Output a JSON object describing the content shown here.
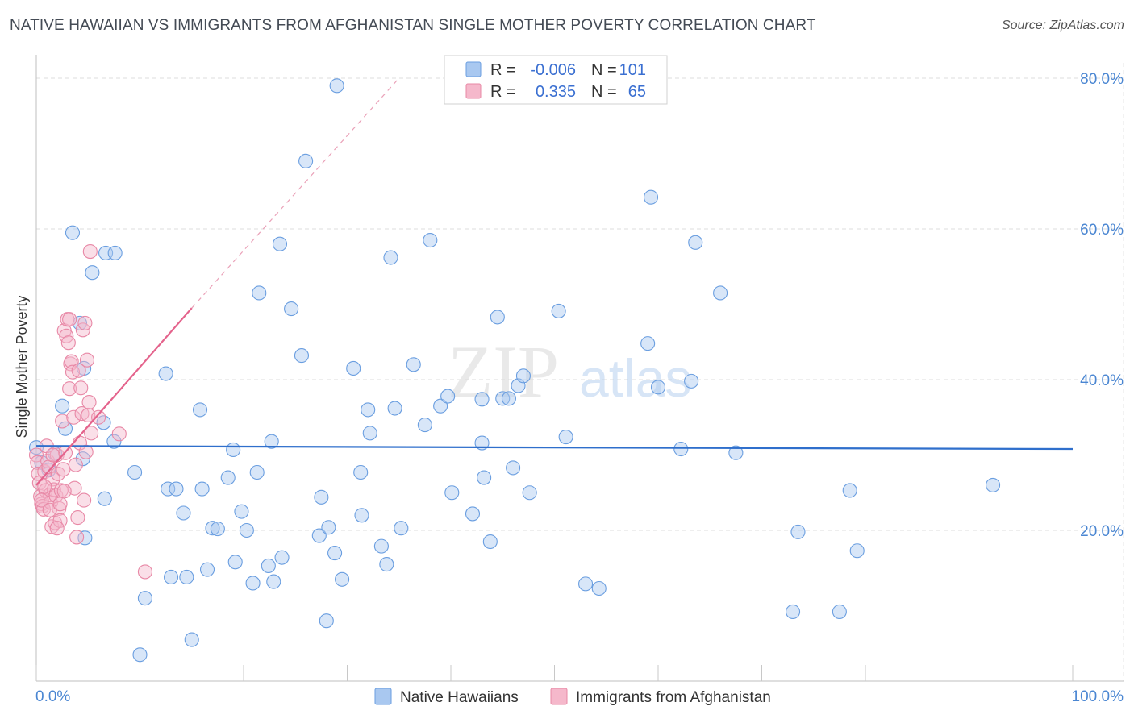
{
  "title": "NATIVE HAWAIIAN VS IMMIGRANTS FROM AFGHANISTAN SINGLE MOTHER POVERTY CORRELATION CHART",
  "source": "Source: ZipAtlas.com",
  "watermark": {
    "zip": "ZIP",
    "atlas": "atlas"
  },
  "legend": {
    "rows": [
      {
        "r_label": "R =",
        "r_value": "-0.006",
        "n_label": "N =",
        "n_value": "101",
        "color": "#a9c8f0",
        "stroke": "#6a9ee0"
      },
      {
        "r_label": "R =",
        "r_value": "0.335",
        "n_label": "N =",
        "n_value": "65",
        "color": "#f5b8cb",
        "stroke": "#e888a6"
      }
    ]
  },
  "bottom_legend": [
    {
      "label": "Native Hawaiians",
      "color": "#a9c8f0",
      "stroke": "#6a9ee0"
    },
    {
      "label": "Immigrants from Afghanistan",
      "color": "#f5b8cb",
      "stroke": "#e888a6"
    }
  ],
  "chart_data": {
    "type": "scatter",
    "title": "NATIVE HAWAIIAN VS IMMIGRANTS FROM AFGHANISTAN SINGLE MOTHER POVERTY CORRELATION CHART",
    "ylabel": "Single Mother Poverty",
    "xlabel": "",
    "xlim": [
      0,
      100
    ],
    "ylim": [
      0,
      80
    ],
    "x_tick_labels": [
      "0.0%",
      "100.0%"
    ],
    "y_ticks": [
      20,
      40,
      60,
      80
    ],
    "y_tick_labels": [
      "20.0%",
      "40.0%",
      "60.0%",
      "80.0%"
    ],
    "grid": true,
    "series": [
      {
        "name": "Native Hawaiians",
        "color": "#6a9ee0",
        "fill": "#a9c8f0",
        "trend": {
          "x": [
            0,
            100
          ],
          "y": [
            31.2,
            30.8
          ]
        },
        "points": [
          [
            0.0,
            31.0
          ],
          [
            0.5,
            29.0
          ],
          [
            1.2,
            28.0
          ],
          [
            1.8,
            30.2
          ],
          [
            2.5,
            36.5
          ],
          [
            2.8,
            33.5
          ],
          [
            3.5,
            59.5
          ],
          [
            4.2,
            47.5
          ],
          [
            4.6,
            41.5
          ],
          [
            5.4,
            54.2
          ],
          [
            4.5,
            29.5
          ],
          [
            4.7,
            19.0
          ],
          [
            6.7,
            56.8
          ],
          [
            7.6,
            56.8
          ],
          [
            6.5,
            34.3
          ],
          [
            7.5,
            31.8
          ],
          [
            6.6,
            24.2
          ],
          [
            9.5,
            27.7
          ],
          [
            10.0,
            3.5
          ],
          [
            10.5,
            11.0
          ],
          [
            12.5,
            40.8
          ],
          [
            12.7,
            25.5
          ],
          [
            13.0,
            13.8
          ],
          [
            13.5,
            25.5
          ],
          [
            14.2,
            22.3
          ],
          [
            14.5,
            13.8
          ],
          [
            15.0,
            5.5
          ],
          [
            15.8,
            36.0
          ],
          [
            16.0,
            25.5
          ],
          [
            16.5,
            14.8
          ],
          [
            17.0,
            20.3
          ],
          [
            17.5,
            20.2
          ],
          [
            18.5,
            27.0
          ],
          [
            19.0,
            30.7
          ],
          [
            19.2,
            15.8
          ],
          [
            19.8,
            22.5
          ],
          [
            20.3,
            20.0
          ],
          [
            20.9,
            13.0
          ],
          [
            21.3,
            27.7
          ],
          [
            21.5,
            51.5
          ],
          [
            22.4,
            15.3
          ],
          [
            22.7,
            31.8
          ],
          [
            22.9,
            13.2
          ],
          [
            23.5,
            58.0
          ],
          [
            23.7,
            16.4
          ],
          [
            24.6,
            49.4
          ],
          [
            25.6,
            43.2
          ],
          [
            26.0,
            69.0
          ],
          [
            27.3,
            19.3
          ],
          [
            27.5,
            24.4
          ],
          [
            28.0,
            8.0
          ],
          [
            28.2,
            20.4
          ],
          [
            28.8,
            17.0
          ],
          [
            29.5,
            13.5
          ],
          [
            30.6,
            41.5
          ],
          [
            31.4,
            22.0
          ],
          [
            31.3,
            27.7
          ],
          [
            32.0,
            36.0
          ],
          [
            32.2,
            32.9
          ],
          [
            33.3,
            17.9
          ],
          [
            33.8,
            15.5
          ],
          [
            34.2,
            56.2
          ],
          [
            34.6,
            36.2
          ],
          [
            35.2,
            20.3
          ],
          [
            36.4,
            42.0
          ],
          [
            37.5,
            34.0
          ],
          [
            38.0,
            58.5
          ],
          [
            39.0,
            36.5
          ],
          [
            39.7,
            37.8
          ],
          [
            40.1,
            25.0
          ],
          [
            42.1,
            22.2
          ],
          [
            43.0,
            37.4
          ],
          [
            43.0,
            31.6
          ],
          [
            43.2,
            27.0
          ],
          [
            43.8,
            18.5
          ],
          [
            44.5,
            48.3
          ],
          [
            45.0,
            37.5
          ],
          [
            45.6,
            37.5
          ],
          [
            46.0,
            28.3
          ],
          [
            46.5,
            39.2
          ],
          [
            47.0,
            40.5
          ],
          [
            47.6,
            25.0
          ],
          [
            50.4,
            49.1
          ],
          [
            51.1,
            32.4
          ],
          [
            53.0,
            12.9
          ],
          [
            54.3,
            12.3
          ],
          [
            59.0,
            44.8
          ],
          [
            59.3,
            64.2
          ],
          [
            60.0,
            39.0
          ],
          [
            62.2,
            30.8
          ],
          [
            63.2,
            39.8
          ],
          [
            63.6,
            58.2
          ],
          [
            66.0,
            51.5
          ],
          [
            67.5,
            30.3
          ],
          [
            73.0,
            9.2
          ],
          [
            73.5,
            19.8
          ],
          [
            77.5,
            9.2
          ],
          [
            78.5,
            25.3
          ],
          [
            79.2,
            17.3
          ],
          [
            92.3,
            26.0
          ],
          [
            29.0,
            79.0
          ]
        ]
      },
      {
        "name": "Immigrants from Afghanistan",
        "color": "#e888a6",
        "fill": "#f5b8cb",
        "trend": {
          "x": [
            0,
            15
          ],
          "y": [
            26.0,
            49.5
          ]
        },
        "trend_extended": {
          "x": [
            15,
            35
          ],
          "y": [
            49.5,
            80.0
          ]
        },
        "points": [
          [
            0.0,
            30.0
          ],
          [
            0.1,
            29.0
          ],
          [
            0.2,
            27.5
          ],
          [
            0.3,
            26.3
          ],
          [
            0.4,
            24.5
          ],
          [
            0.5,
            23.5
          ],
          [
            0.6,
            23.2
          ],
          [
            0.7,
            22.8
          ],
          [
            0.8,
            27.8
          ],
          [
            0.9,
            25.3
          ],
          [
            1.0,
            31.2
          ],
          [
            1.1,
            29.2
          ],
          [
            1.2,
            28.4
          ],
          [
            1.3,
            24.7
          ],
          [
            1.4,
            23.7
          ],
          [
            1.5,
            20.5
          ],
          [
            1.6,
            26.8
          ],
          [
            1.7,
            25.4
          ],
          [
            1.8,
            21.0
          ],
          [
            1.9,
            24.6
          ],
          [
            2.0,
            30.0
          ],
          [
            2.1,
            27.5
          ],
          [
            2.2,
            22.9
          ],
          [
            2.3,
            21.3
          ],
          [
            2.4,
            25.3
          ],
          [
            2.5,
            34.5
          ],
          [
            2.6,
            28.1
          ],
          [
            2.7,
            46.5
          ],
          [
            2.8,
            30.3
          ],
          [
            2.9,
            45.8
          ],
          [
            3.0,
            48.0
          ],
          [
            3.1,
            44.9
          ],
          [
            3.2,
            38.8
          ],
          [
            3.3,
            42.1
          ],
          [
            3.4,
            42.4
          ],
          [
            3.5,
            41.0
          ],
          [
            3.6,
            35.0
          ],
          [
            3.7,
            25.6
          ],
          [
            3.8,
            28.7
          ],
          [
            3.9,
            19.1
          ],
          [
            4.0,
            21.7
          ],
          [
            4.1,
            41.2
          ],
          [
            4.2,
            31.6
          ],
          [
            4.3,
            38.9
          ],
          [
            4.4,
            35.5
          ],
          [
            4.5,
            46.6
          ],
          [
            4.6,
            24.0
          ],
          [
            4.7,
            47.5
          ],
          [
            4.8,
            30.4
          ],
          [
            4.9,
            42.6
          ],
          [
            5.0,
            35.3
          ],
          [
            5.1,
            37.0
          ],
          [
            5.2,
            57.0
          ],
          [
            5.3,
            32.9
          ],
          [
            0.5,
            24.0
          ],
          [
            0.8,
            25.8
          ],
          [
            1.3,
            22.7
          ],
          [
            1.6,
            30.0
          ],
          [
            2.0,
            20.3
          ],
          [
            2.3,
            23.5
          ],
          [
            2.7,
            25.2
          ],
          [
            3.2,
            48.0
          ],
          [
            10.5,
            14.5
          ],
          [
            8.0,
            32.8
          ],
          [
            6.0,
            35.0
          ]
        ]
      }
    ]
  }
}
